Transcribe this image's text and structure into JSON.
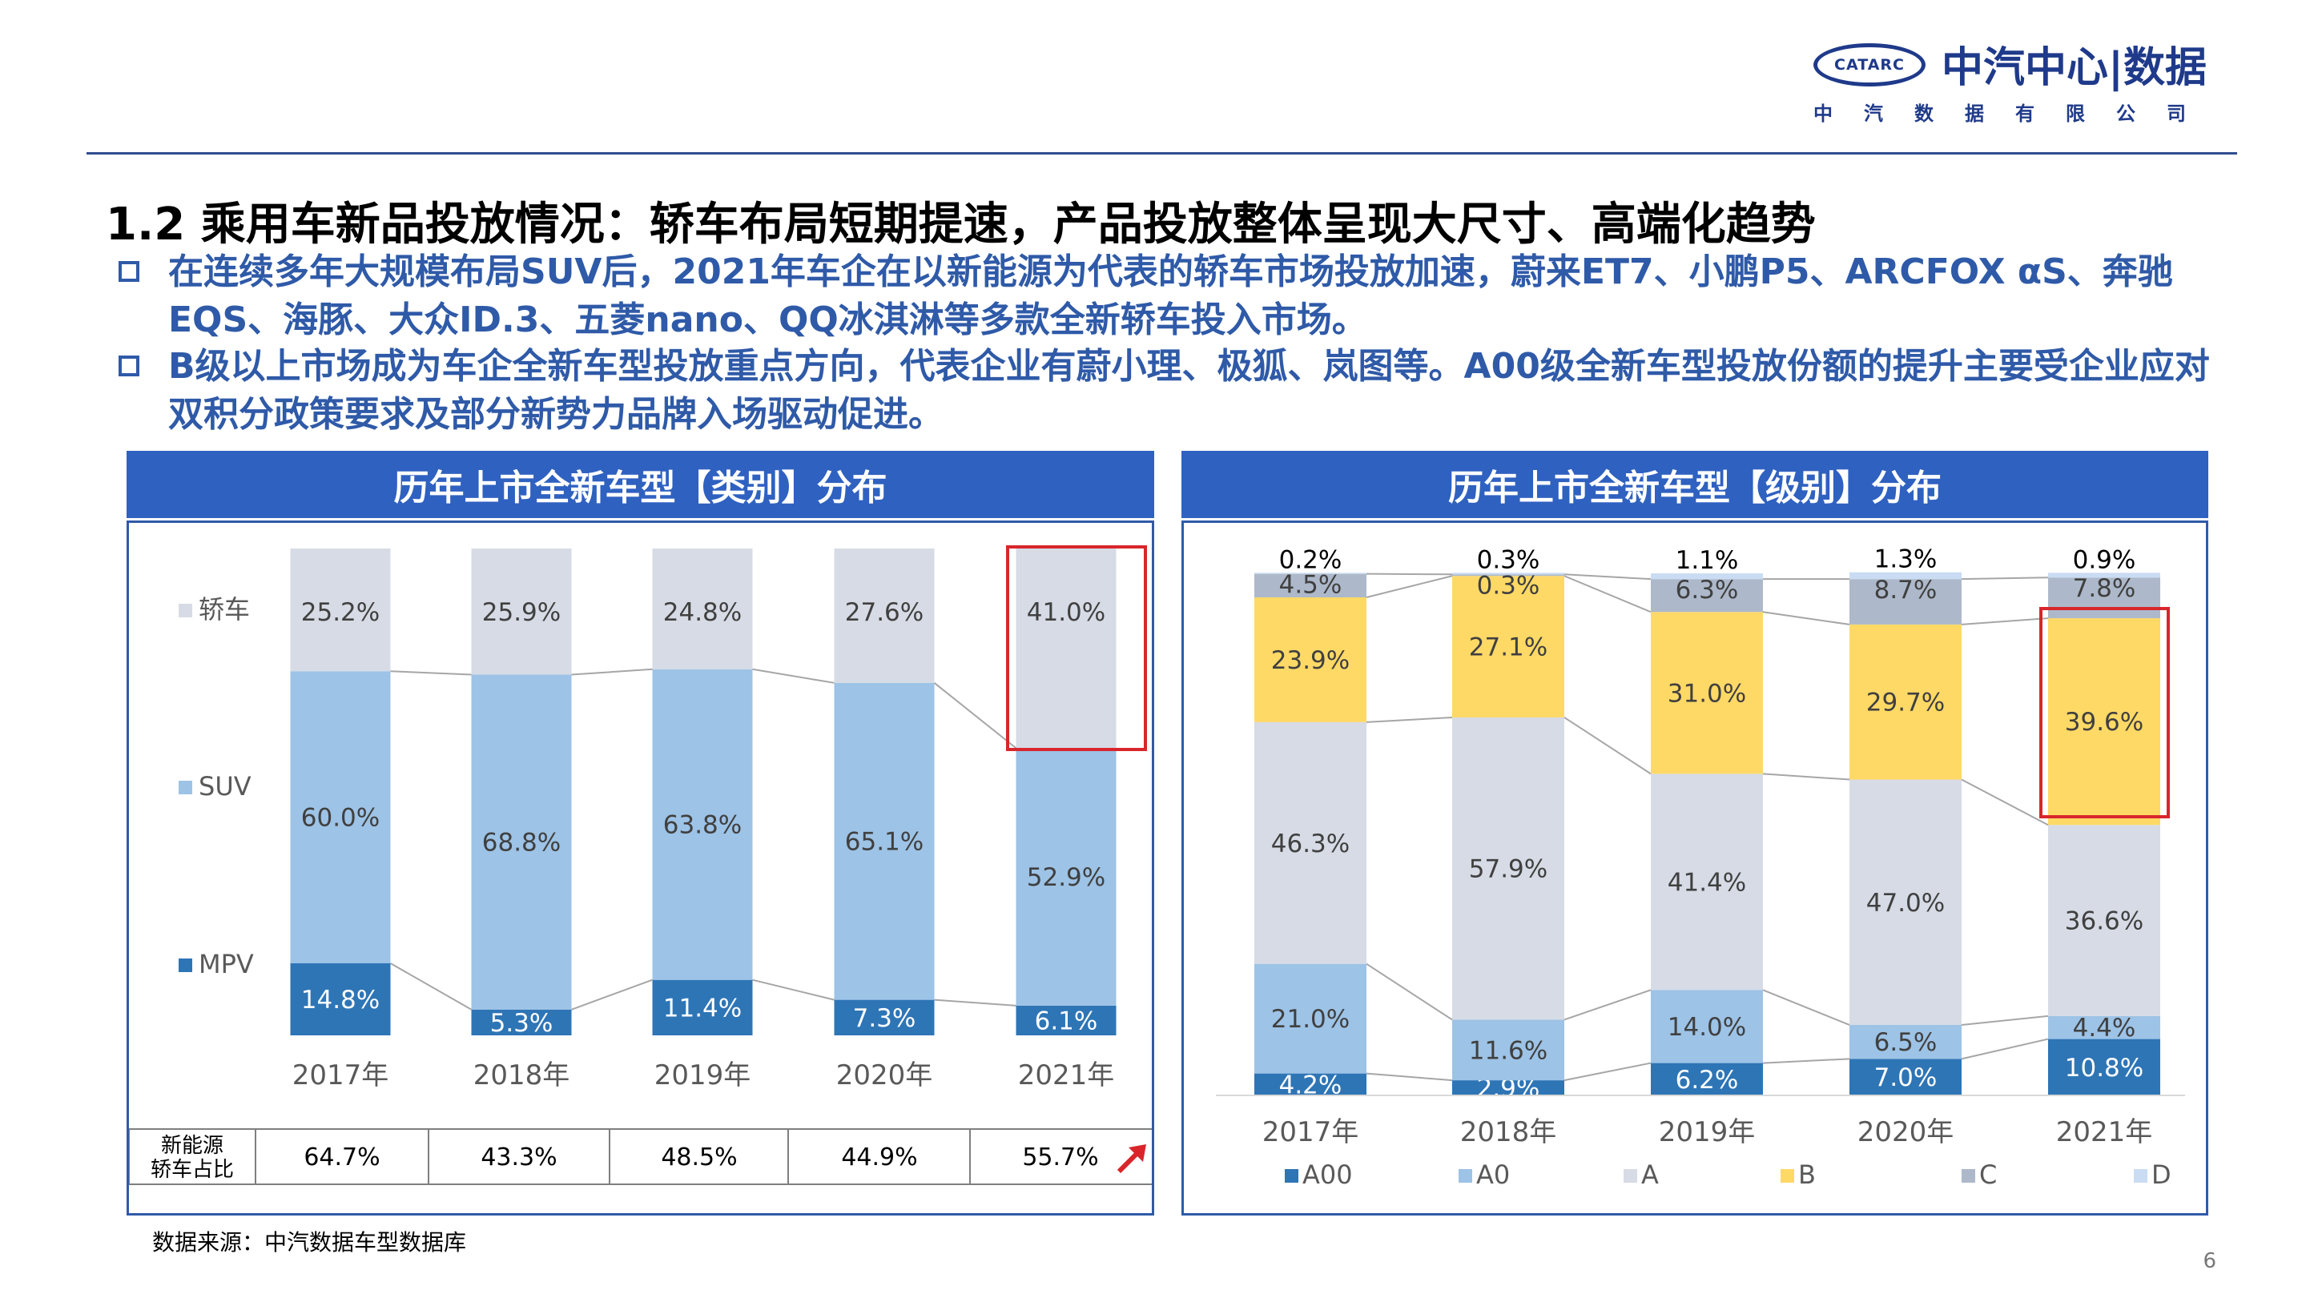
{
  "logo": {
    "oval_text": "CATARC",
    "name": "中汽中心|数据",
    "subtitle": "中汽数据有限公司"
  },
  "title": "1.2 乘用车新品投放情况：轿车布局短期提速，产品投放整体呈现大尺寸、高端化趋势",
  "bullets": [
    "在连续多年大规模布局SUV后，2021年车企在以新能源为代表的轿车市场投放加速，蔚来ET7、小鹏P5、ARCFOX αS、奔驰EQS、海豚、大众ID.3、五菱nano、QQ冰淇淋等多款全新轿车投入市场。",
    "B级以上市场成为车企全新车型投放重点方向，代表企业有蔚小理、极狐、岚图等。A00级全新车型投放份额的提升主要受企业应对双积分政策要求及部分新势力品牌入场驱动促进。"
  ],
  "left_panel_title": "历年上市全新车型【类别】分布",
  "right_panel_title": "历年上市全新车型【级别】分布",
  "source": "数据来源：中汽数据车型数据库",
  "page_number": "6",
  "colors": {
    "accent_blue": "#2f61c0",
    "text_blue": "#2f5aa8",
    "highlight_red": "#d8262b",
    "sedan": "#d6dbe5",
    "suv": "#9dc3e6",
    "mpv": "#2e75b6",
    "A00": "#2e75b6",
    "A0": "#9dc3e6",
    "A": "#d6dbe5",
    "B": "#ffd966",
    "C": "#adb9ca",
    "D": "#c9dcf3"
  },
  "chart_data": [
    {
      "type": "bar",
      "stacked": true,
      "categories": [
        "2017年",
        "2018年",
        "2019年",
        "2020年",
        "2021年"
      ],
      "series": [
        {
          "name": "MPV",
          "values": [
            14.8,
            5.3,
            11.4,
            7.3,
            6.1
          ]
        },
        {
          "name": "SUV",
          "values": [
            60.0,
            68.8,
            63.8,
            65.1,
            52.9
          ]
        },
        {
          "name": "轿车",
          "values": [
            25.2,
            25.9,
            24.8,
            27.6,
            41.0
          ]
        }
      ],
      "unit": "%",
      "ylim": [
        0,
        100
      ],
      "legend_position": "left",
      "highlight": {
        "category": "2021年",
        "series": "轿车"
      },
      "table": {
        "row_label_line1": "新能源",
        "row_label_line2": "轿车占比",
        "values": [
          "64.7%",
          "43.3%",
          "48.5%",
          "44.9%",
          "55.7%"
        ],
        "trend_mark": "up-arrow"
      }
    },
    {
      "type": "bar",
      "stacked": true,
      "categories": [
        "2017年",
        "2018年",
        "2019年",
        "2020年",
        "2021年"
      ],
      "series": [
        {
          "name": "A00",
          "values": [
            4.2,
            2.9,
            6.2,
            7.0,
            10.8
          ]
        },
        {
          "name": "A0",
          "values": [
            21.0,
            11.6,
            14.0,
            6.5,
            4.4
          ]
        },
        {
          "name": "A",
          "values": [
            46.3,
            57.9,
            41.4,
            47.0,
            36.6
          ]
        },
        {
          "name": "B",
          "values": [
            23.9,
            27.1,
            31.0,
            29.7,
            39.6
          ]
        },
        {
          "name": "C",
          "values": [
            4.5,
            0.3,
            6.3,
            8.7,
            7.8
          ]
        },
        {
          "name": "D",
          "values": [
            0.2,
            0.3,
            1.1,
            1.3,
            0.9
          ]
        }
      ],
      "unit": "%",
      "ylim": [
        0,
        100
      ],
      "legend_position": "bottom",
      "highlight": {
        "category": "2021年",
        "series": "B"
      }
    }
  ]
}
